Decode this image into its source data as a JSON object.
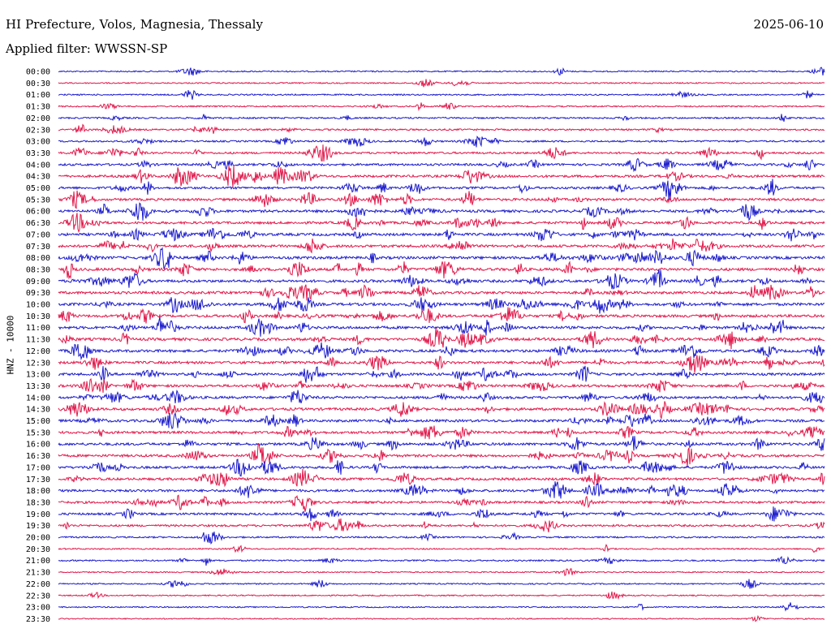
{
  "header": {
    "station": "HI Prefecture, Volos, Magnesia, Thessaly",
    "date": "2025-06-10",
    "filter": "Applied filter: WWSSN-SP"
  },
  "channel": "HNZ - 10000",
  "colors": {
    "blue_trace": "#1a1acc",
    "red_trace": "#e0184a",
    "background": "#ffffff",
    "text": "#000000"
  },
  "chart_data": {
    "type": "line",
    "subtype": "helicorder",
    "title": "HI Prefecture, Volos, Magnesia, Thessaly",
    "date": "2025-06-10",
    "ylabel": "HNZ - 10000",
    "xlabel": "",
    "row_interval_minutes": 30,
    "series_colors_alternate": [
      "blue",
      "red"
    ],
    "row_labels": [
      "00:00",
      "00:30",
      "01:00",
      "01:30",
      "02:00",
      "02:30",
      "03:00",
      "03:30",
      "04:00",
      "04:30",
      "05:00",
      "05:30",
      "06:00",
      "06:30",
      "07:00",
      "07:30",
      "08:00",
      "08:30",
      "09:00",
      "09:30",
      "10:00",
      "10:30",
      "11:00",
      "11:30",
      "12:00",
      "12:30",
      "13:00",
      "13:30",
      "14:00",
      "14:30",
      "15:00",
      "15:30",
      "16:00",
      "16:30",
      "17:00",
      "17:30",
      "18:00",
      "18:30",
      "19:00",
      "19:30",
      "20:00",
      "20:30",
      "21:00",
      "21:30",
      "22:00",
      "22:30",
      "23:00",
      "23:30"
    ],
    "activity_level": [
      0.15,
      0.12,
      0.18,
      0.2,
      0.3,
      0.35,
      0.35,
      0.5,
      0.6,
      0.7,
      0.65,
      0.7,
      0.75,
      0.75,
      0.8,
      0.8,
      0.85,
      0.85,
      0.8,
      0.8,
      0.85,
      0.8,
      0.85,
      0.85,
      0.8,
      0.8,
      0.75,
      0.75,
      0.75,
      0.8,
      0.75,
      0.75,
      0.75,
      0.75,
      0.7,
      0.7,
      0.7,
      0.65,
      0.6,
      0.5,
      0.3,
      0.15,
      0.25,
      0.12,
      0.15,
      0.12,
      0.1,
      0.08
    ],
    "grid": false,
    "legend": "none"
  }
}
